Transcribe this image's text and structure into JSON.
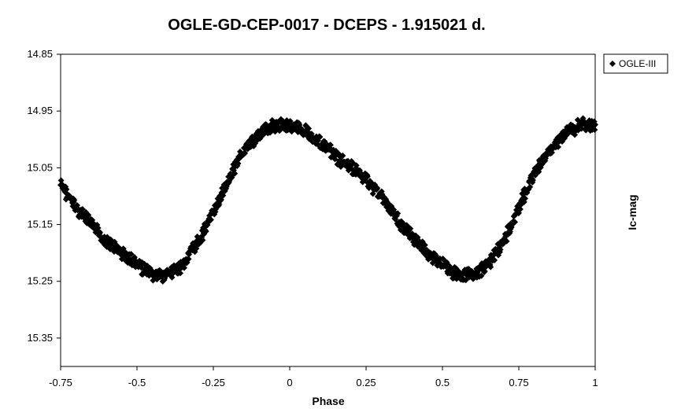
{
  "chart_data": {
    "type": "scatter",
    "title": "OGLE-GD-CEP-0017 - DCEPS - 1.915021 d.",
    "xlabel": "Phase",
    "ylabel": "Ic-mag",
    "xlim": [
      -0.75,
      1.0
    ],
    "ylim": [
      15.4,
      14.85
    ],
    "y_inverted": true,
    "x_ticks": [
      "-0.75",
      "-0.5",
      "-0.25",
      "0",
      "0.25",
      "0.5",
      "0.75",
      "1"
    ],
    "y_ticks": [
      "14.85",
      "14.95",
      "15.05",
      "15.15",
      "15.25",
      "15.35"
    ],
    "grid": false,
    "legend": {
      "position": "top-right",
      "entries": [
        "OGLE-III"
      ]
    },
    "marker": {
      "shape": "diamond",
      "color": "#000000"
    },
    "series": [
      {
        "name": "OGLE-III",
        "x": [
          -0.75,
          -0.7,
          -0.65,
          -0.6,
          -0.55,
          -0.5,
          -0.45,
          -0.42,
          -0.38,
          -0.35,
          -0.3,
          -0.25,
          -0.2,
          -0.15,
          -0.1,
          -0.05,
          0.0,
          0.05,
          0.1,
          0.15,
          0.2,
          0.25,
          0.3,
          0.35,
          0.4,
          0.45,
          0.5,
          0.55,
          0.58,
          0.62,
          0.65,
          0.7,
          0.75,
          0.8,
          0.85,
          0.9,
          0.95,
          1.0
        ],
        "y": [
          15.08,
          15.12,
          15.15,
          15.18,
          15.2,
          15.22,
          15.24,
          15.24,
          15.235,
          15.22,
          15.18,
          15.13,
          15.07,
          15.02,
          14.99,
          14.975,
          14.975,
          14.985,
          15.005,
          15.03,
          15.05,
          15.07,
          15.1,
          15.14,
          15.17,
          15.2,
          15.22,
          15.24,
          15.24,
          15.235,
          15.22,
          15.18,
          15.12,
          15.06,
          15.02,
          14.99,
          14.975,
          14.975
        ]
      }
    ]
  }
}
